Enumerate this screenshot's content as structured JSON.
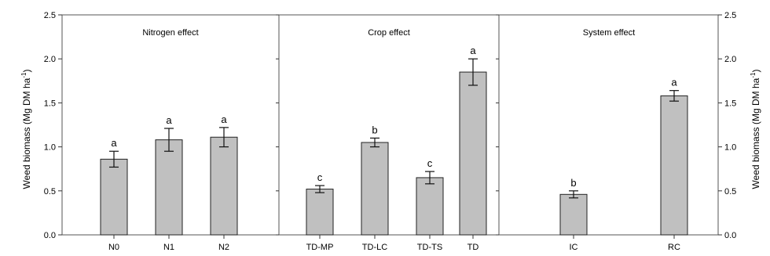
{
  "chart_data": {
    "type": "bar",
    "ylabel": "Weed biomass (Mg DM ha",
    "ylabel_sup": "-1",
    "ylabel_end": ")",
    "ylim": [
      0,
      2.5
    ],
    "yticks": [
      "0.0",
      "0.5",
      "1.0",
      "1.5",
      "2.0",
      "2.5"
    ],
    "ytick_values": [
      0,
      0.5,
      1.0,
      1.5,
      2.0,
      2.5
    ],
    "bar_color": "#c0c0c0",
    "grid": false,
    "panels": [
      {
        "title": "Nitrogen effect",
        "categories": [
          "N0",
          "N1",
          "N2"
        ],
        "values": [
          0.86,
          1.08,
          1.11
        ],
        "errors": [
          0.09,
          0.13,
          0.11
        ],
        "letters": [
          "a",
          "a",
          "a"
        ]
      },
      {
        "title": "Crop effect",
        "categories": [
          "TD-MP",
          "TD-LC",
          "TD-TS",
          "TD"
        ],
        "values": [
          0.52,
          1.05,
          0.65,
          1.85
        ],
        "errors": [
          0.04,
          0.05,
          0.07,
          0.15
        ],
        "letters": [
          "c",
          "b",
          "c",
          "a"
        ]
      },
      {
        "title": "System effect",
        "categories": [
          "IC",
          "RC"
        ],
        "values": [
          0.46,
          1.58
        ],
        "errors": [
          0.04,
          0.06
        ],
        "letters": [
          "b",
          "a"
        ]
      }
    ]
  }
}
